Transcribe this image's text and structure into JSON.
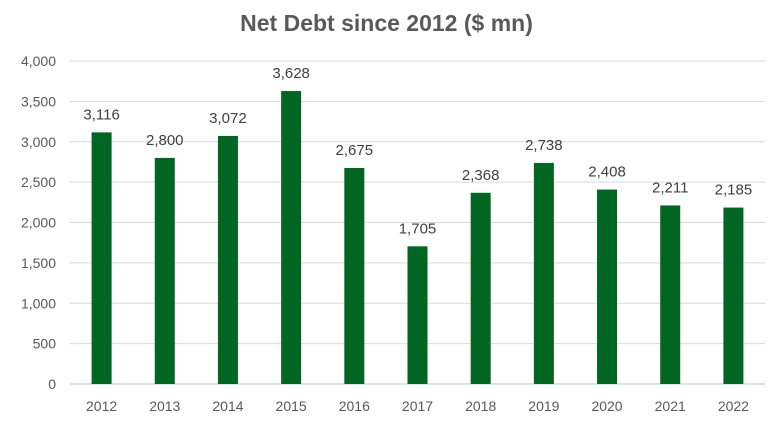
{
  "chart_data": {
    "type": "bar",
    "title": "Net Debt since 2012 ($ mn)",
    "xlabel": "",
    "ylabel": "",
    "categories": [
      "2012",
      "2013",
      "2014",
      "2015",
      "2016",
      "2017",
      "2018",
      "2019",
      "2020",
      "2021",
      "2022"
    ],
    "values": [
      3116,
      2800,
      3072,
      3628,
      2675,
      1705,
      2368,
      2738,
      2408,
      2211,
      2185
    ],
    "data_labels": [
      "3,116",
      "2,800",
      "3,072",
      "3,628",
      "2,675",
      "1,705",
      "2,368",
      "2,738",
      "2,408",
      "2,211",
      "2,185"
    ],
    "ylim": [
      0,
      4000
    ],
    "yticks": [
      0,
      500,
      1000,
      1500,
      2000,
      2500,
      3000,
      3500,
      4000
    ],
    "ytick_labels": [
      "0",
      "500",
      "1,000",
      "1,500",
      "2,000",
      "2,500",
      "3,000",
      "3,500",
      "4,000"
    ],
    "grid": true,
    "legend": "none",
    "bar_color": "#006622"
  }
}
